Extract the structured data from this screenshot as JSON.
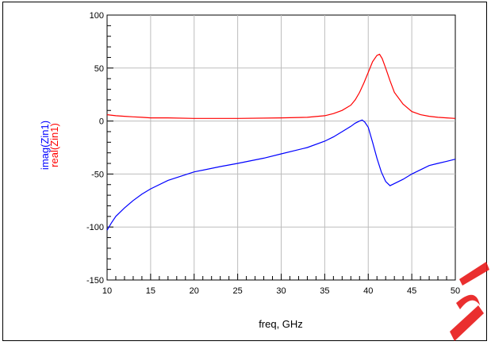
{
  "chart_data": {
    "type": "line",
    "xlabel": "freq, GHz",
    "ylabels": [
      {
        "text": "imag(Zin1)",
        "color": "#0000ff"
      },
      {
        "text": "real(Zin1)",
        "color": "#ff0000"
      }
    ],
    "xlim": [
      10,
      50
    ],
    "ylim": [
      -150,
      100
    ],
    "xticks": [
      10,
      15,
      20,
      25,
      30,
      35,
      40,
      45,
      50
    ],
    "yticks": [
      -150,
      -100,
      -50,
      0,
      50,
      100
    ],
    "grid": true,
    "series": [
      {
        "color": "#ff0000",
        "x": [
          10,
          11,
          12,
          13,
          14,
          15,
          17,
          20,
          25,
          30,
          33,
          35,
          36,
          37,
          38,
          38.5,
          39,
          39.5,
          40,
          40.5,
          41,
          41.3,
          41.6,
          42,
          42.5,
          43,
          44,
          45,
          46,
          47,
          48,
          49,
          50
        ],
        "y": [
          6,
          5,
          4.5,
          4,
          3.5,
          3,
          3,
          2.5,
          2.5,
          3,
          3.5,
          5,
          7,
          10,
          15,
          20,
          27,
          36,
          46,
          56,
          62,
          63,
          59,
          50,
          38,
          27,
          16,
          9,
          6,
          4.5,
          3.5,
          3,
          2.5
        ]
      },
      {
        "color": "#0000ff",
        "x": [
          10,
          10.5,
          11,
          12,
          13,
          14,
          15,
          17,
          20,
          23,
          25,
          28,
          30,
          33,
          35,
          36,
          37,
          38,
          38.5,
          39,
          39.3,
          39.6,
          40,
          40.5,
          41,
          41.5,
          42,
          42.5,
          43,
          44,
          45,
          46,
          47,
          48,
          49,
          50
        ],
        "y": [
          -103,
          -96,
          -90,
          -82,
          -75,
          -69,
          -64,
          -56,
          -48,
          -43,
          -40,
          -35,
          -31,
          -25,
          -19,
          -15,
          -10,
          -5,
          -2,
          0,
          1,
          -1,
          -6,
          -20,
          -35,
          -48,
          -57,
          -61,
          -59,
          -55,
          -50,
          -46,
          -42,
          -40,
          -38,
          -36
        ]
      }
    ]
  }
}
